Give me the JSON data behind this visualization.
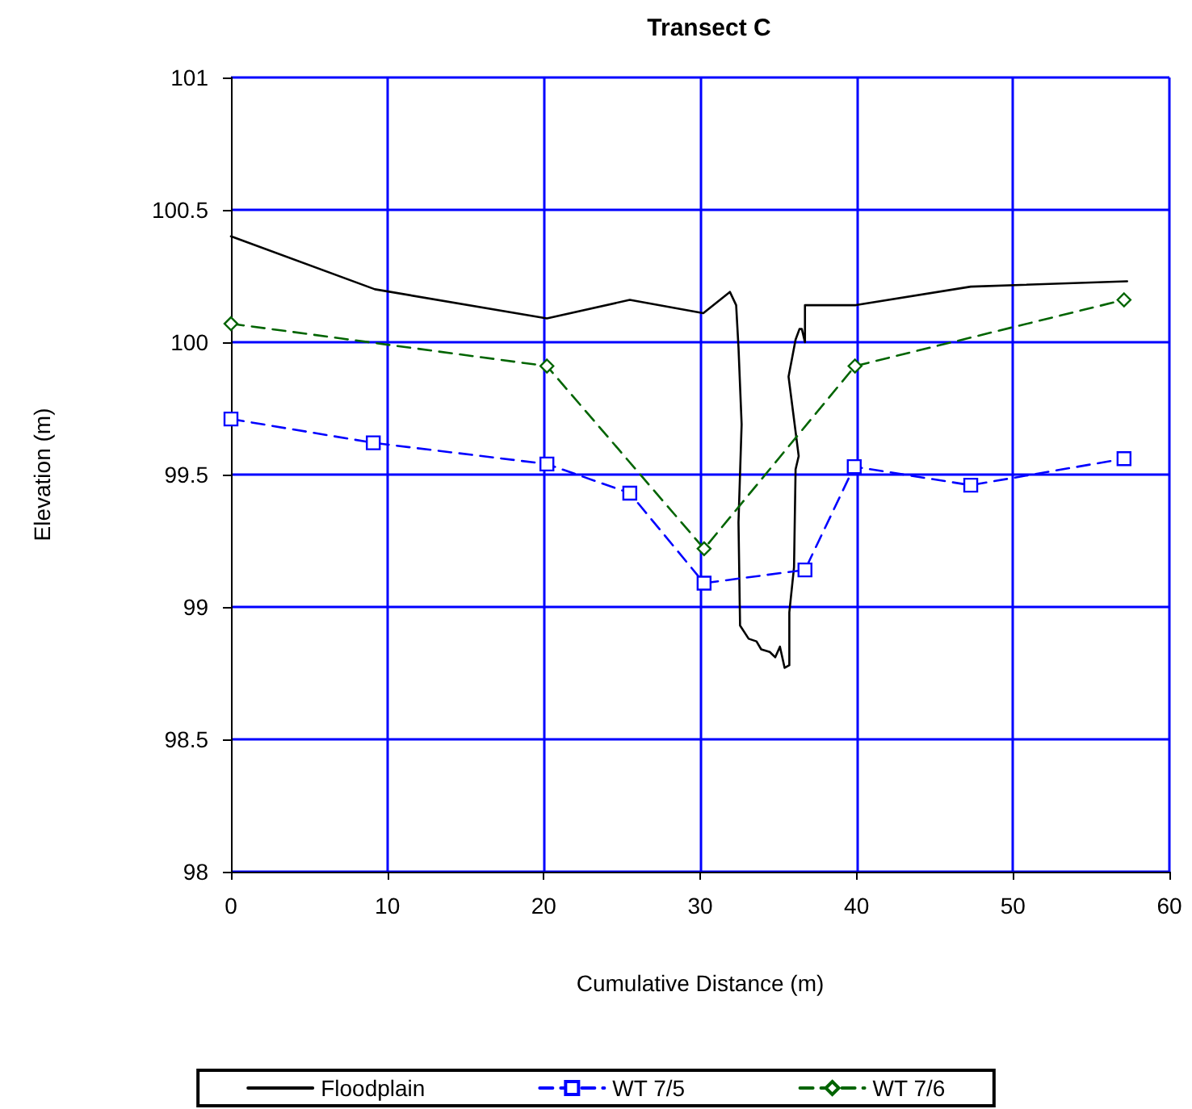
{
  "chart_data": {
    "type": "line",
    "title": "Transect C",
    "xlabel": "Cumulative Distance (m)",
    "ylabel": "Elevation (m)",
    "xlim": [
      0,
      60
    ],
    "xticks": [
      0,
      10,
      20,
      30,
      40,
      50,
      60
    ],
    "ylim": [
      98,
      101
    ],
    "yticks": [
      98,
      98.5,
      99,
      99.5,
      100,
      100.5,
      101
    ],
    "grid": true,
    "legend": "bottom",
    "series": [
      {
        "name": "Floodplain",
        "color": "#000000",
        "marker": "none",
        "line_style": "solid",
        "x": [
          0,
          9.2,
          20.2,
          25.5,
          30.2,
          31.9,
          32.3,
          32.45,
          32.65,
          32.45,
          32.55,
          33.1,
          33.6,
          33.9,
          34.45,
          34.8,
          35.1,
          35.4,
          35.7,
          35.7,
          36.0,
          36.1,
          36.3,
          35.65,
          36.1,
          36.35,
          36.5,
          36.7,
          36.7,
          39.95,
          47.3,
          57.3
        ],
        "values": [
          100.4,
          100.2,
          100.09,
          100.16,
          100.11,
          100.19,
          100.14,
          99.98,
          99.69,
          99.32,
          98.93,
          98.88,
          98.87,
          98.84,
          98.83,
          98.81,
          98.85,
          98.77,
          98.78,
          98.98,
          99.15,
          99.52,
          99.57,
          99.87,
          100.01,
          100.05,
          100.05,
          100.0,
          100.14,
          100.14,
          100.21,
          100.23
        ]
      },
      {
        "name": "WT 7/5",
        "color": "#0000ff",
        "marker": "square",
        "line_style": "dashed",
        "x": [
          0,
          9.1,
          20.2,
          25.5,
          30.25,
          36.7,
          39.85,
          47.3,
          57.1
        ],
        "values": [
          99.71,
          99.62,
          99.54,
          99.43,
          99.09,
          99.14,
          99.53,
          99.46,
          99.56
        ]
      },
      {
        "name": "WT 7/6",
        "color": "#006400",
        "marker": "diamond",
        "line_style": "dashed",
        "x": [
          0,
          20.2,
          30.25,
          39.9,
          57.1
        ],
        "values": [
          100.07,
          99.91,
          99.22,
          99.91,
          100.16
        ]
      }
    ]
  }
}
